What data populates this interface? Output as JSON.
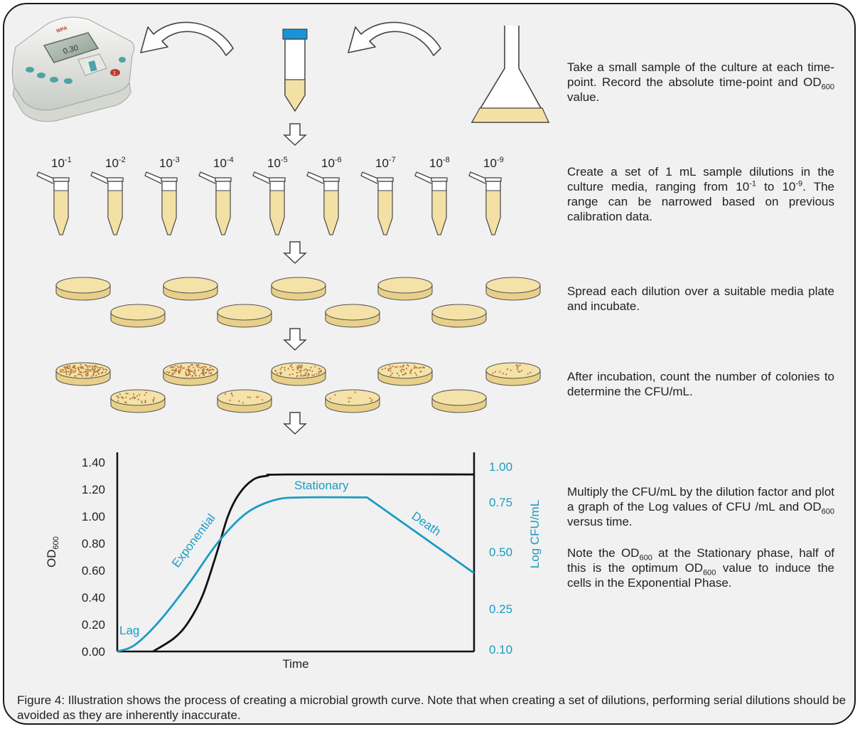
{
  "dilutions": [
    {
      "base": "10",
      "exp": "-1"
    },
    {
      "base": "10",
      "exp": "-2"
    },
    {
      "base": "10",
      "exp": "-3"
    },
    {
      "base": "10",
      "exp": "-4"
    },
    {
      "base": "10",
      "exp": "-5"
    },
    {
      "base": "10",
      "exp": "-6"
    },
    {
      "base": "10",
      "exp": "-7"
    },
    {
      "base": "10",
      "exp": "-8"
    },
    {
      "base": "10",
      "exp": "-9"
    }
  ],
  "device": {
    "display": "0.30",
    "brand": "WPA",
    "button": "1"
  },
  "steps": {
    "step1": {
      "part1": "Take a small sample of the culture at each time-point. Record the absolute time-point and OD",
      "sub": "600",
      "part2": " value."
    },
    "step2": {
      "part1": "Create a set of 1 mL sample dilutions in the culture media, ranging from 10",
      "sup1": "-1",
      "part2": " to 10",
      "sup2": "-9",
      "part3": ". The range can be narrowed based on previous calibration data."
    },
    "step3": {
      "text": "Spread each dilution over a suitable media plate and incubate."
    },
    "step4": {
      "text": "After incubation, count the number of colonies to determine the CFU/mL."
    },
    "step5": {
      "part1": "Multiply the CFU/mL by the dilution factor and plot a graph of the Log values of CFU /mL and OD",
      "sub": "600",
      "part2": " versus time."
    },
    "step6": {
      "part1": "Note the OD",
      "sub1": "600",
      "part2": " at the Stationary phase, half of this is the optimum OD",
      "sub2": "600",
      "part3": " value to induce the cells in the Exponential Phase."
    }
  },
  "chart_data": {
    "type": "line",
    "xlabel": "Time",
    "ylabel_left": {
      "main": "OD",
      "sub": "600"
    },
    "ylabel_right": "Log CFU/mL",
    "y_left_ticks": [
      "0.00",
      "0.20",
      "0.40",
      "0.60",
      "0.80",
      "1.00",
      "1.20",
      "1.40"
    ],
    "y_left_range": [
      0,
      1.4
    ],
    "y_right_ticks": [
      "0.10",
      "0.25",
      "0.50",
      "0.75",
      "1.00"
    ],
    "x_ticks_shown": false,
    "grid": false,
    "series_colors": {
      "od600": "#111111",
      "log_cfu": "#1a9cc4"
    },
    "phase_labels": [
      "Lag",
      "Exponential",
      "Stationary",
      "Death"
    ],
    "series": [
      {
        "id": "od600",
        "axis": "left",
        "note": "sigmoid rising from ~0.15 of time, plateau at 1.31",
        "x": [
          0.1,
          0.16,
          0.2,
          0.24,
          0.28,
          0.31,
          0.34,
          0.38,
          0.42,
          0.48,
          1.0
        ],
        "y": [
          0.0,
          0.1,
          0.22,
          0.42,
          0.74,
          1.0,
          1.16,
          1.27,
          1.3,
          1.31,
          1.31
        ]
      },
      {
        "id": "log_cfu",
        "axis": "left",
        "note": "lag, exponential, stationary plateau, linear death",
        "x": [
          0.0,
          0.05,
          0.12,
          0.2,
          0.28,
          0.36,
          0.44,
          0.52,
          0.7,
          1.0
        ],
        "y": [
          0.0,
          0.05,
          0.23,
          0.5,
          0.8,
          1.02,
          1.12,
          1.14,
          1.14,
          0.58
        ]
      }
    ]
  },
  "caption": "Figure 4: Illustration shows the process of creating a microbial growth curve. Note that when creating a set of dilutions, performing serial dilutions should be avoided as they are inherently inaccurate."
}
